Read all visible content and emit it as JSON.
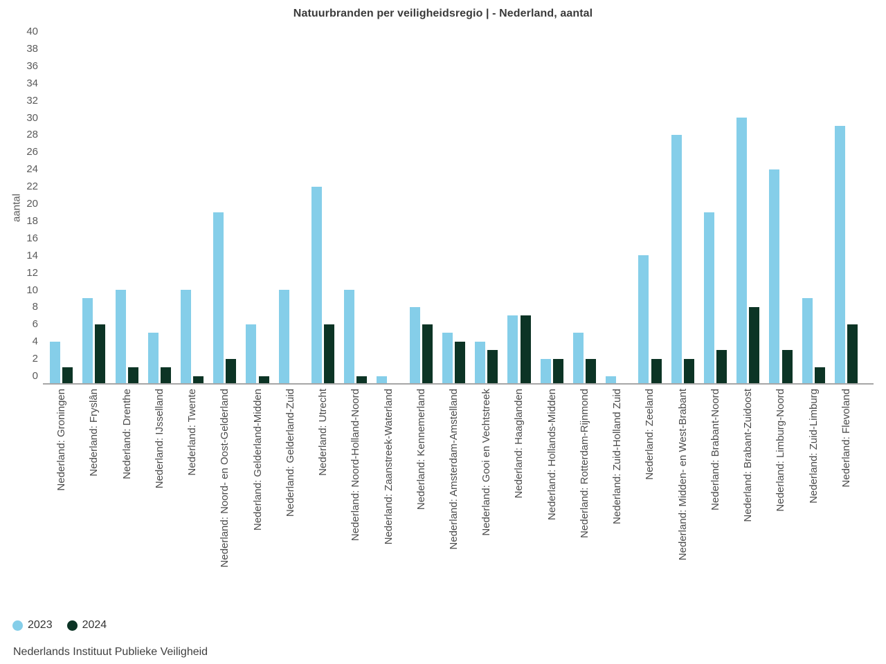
{
  "source": "Nederlands Instituut Publieke Veiligheid",
  "colors": {
    "series_2023": "#85CEE9",
    "series_2024": "#0C3425",
    "axis_line": "#a6a6a6",
    "text": "#3a3a3a"
  },
  "chart_data": {
    "type": "bar",
    "title": "Natuurbranden per veiligheidsregio | - Nederland, aantal",
    "xlabel": "",
    "ylabel": "aantal",
    "ylim": [
      0,
      40
    ],
    "yticks": [
      0,
      2,
      4,
      6,
      8,
      10,
      12,
      14,
      16,
      18,
      20,
      22,
      24,
      26,
      28,
      30,
      32,
      34,
      36,
      38,
      40
    ],
    "grid": false,
    "legend_position": "bottom-left",
    "categories": [
      "Nederland: Groningen",
      "Nederland: Fryslân",
      "Nederland: Drenthe",
      "Nederland: IJsselland",
      "Nederland: Twente",
      "Nederland: Noord- en Oost-Gelderland",
      "Nederland: Gelderland-Midden",
      "Nederland: Gelderland-Zuid",
      "Nederland: Utrecht",
      "Nederland: Noord-Holland-Noord",
      "Nederland: Zaanstreek-Waterland",
      "Nederland: Kennemerland",
      "Nederland: Amsterdam-Amstelland",
      "Nederland: Gooi en Vechtstreek",
      "Nederland: Haaglanden",
      "Nederland: Hollands-Midden",
      "Nederland: Rotterdam-Rijnmond",
      "Nederland: Zuid-Holland Zuid",
      "Nederland: Zeeland",
      "Nederland: Midden- en West-Brabant",
      "Nederland: Brabant-Noord",
      "Nederland: Brabant-Zuidoost",
      "Nederland: Limburg-Noord",
      "Nederland: Zuid-Limburg",
      "Nederland: Flevoland"
    ],
    "series": [
      {
        "name": "2023",
        "color": "#85CEE9",
        "values": [
          4,
          9,
          10,
          5,
          10,
          19,
          6,
          10,
          22,
          10,
          0,
          8,
          5,
          4,
          7,
          2,
          5,
          0,
          14,
          28,
          19,
          30,
          24,
          9,
          29
        ]
      },
      {
        "name": "2024",
        "color": "#0C3425",
        "values": [
          1,
          6,
          1,
          1,
          0,
          2,
          0,
          null,
          6,
          0,
          null,
          6,
          4,
          3,
          7,
          2,
          2,
          null,
          2,
          2,
          3,
          8,
          3,
          1,
          6
        ]
      }
    ]
  }
}
